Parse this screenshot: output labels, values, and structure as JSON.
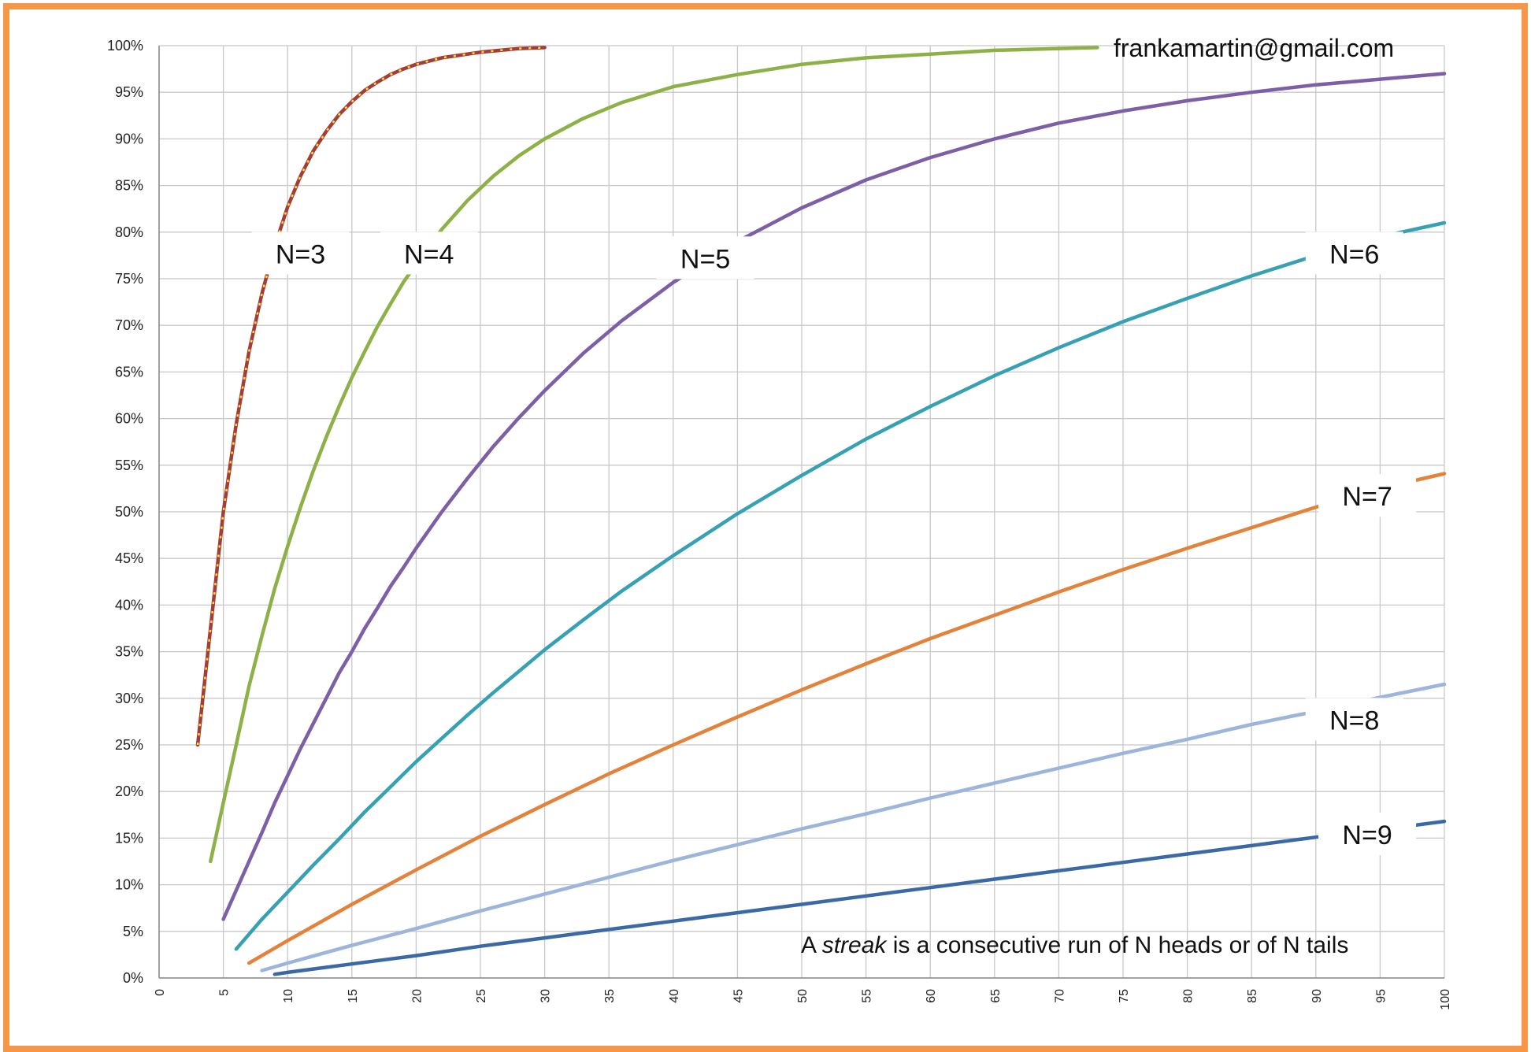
{
  "chart_data": {
    "type": "line",
    "xlim": [
      0,
      100
    ],
    "ylim": [
      0,
      100
    ],
    "x_ticks": [
      "0",
      "5",
      "10",
      "15",
      "20",
      "25",
      "30",
      "35",
      "40",
      "45",
      "50",
      "55",
      "60",
      "65",
      "70",
      "75",
      "80",
      "85",
      "90",
      "95",
      "100"
    ],
    "y_ticks": [
      "0%",
      "5%",
      "10%",
      "15%",
      "20%",
      "25%",
      "30%",
      "35%",
      "40%",
      "45%",
      "50%",
      "55%",
      "60%",
      "65%",
      "70%",
      "75%",
      "80%",
      "85%",
      "90%",
      "95%",
      "100%"
    ],
    "grid": true,
    "annotations": {
      "email": "frankamartin@gmail.com",
      "note_prefix": "A ",
      "note_italic": "streak",
      "note_suffix": " is a consecutive run of N heads or of N tails"
    },
    "series": [
      {
        "name": "N=3",
        "color": "#a53c3a",
        "dotted_overlay": "#ffe030",
        "x": [
          3,
          4,
          5,
          6,
          7,
          8,
          9,
          10,
          11,
          12,
          13,
          14,
          15,
          16,
          17,
          18,
          19,
          20,
          22,
          25,
          28,
          30
        ],
        "y": [
          25,
          37.5,
          50,
          59.4,
          67.2,
          73.4,
          78.5,
          82.7,
          86.0,
          88.7,
          90.8,
          92.6,
          94.0,
          95.2,
          96.1,
          96.9,
          97.5,
          98.0,
          98.7,
          99.3,
          99.7,
          99.8
        ]
      },
      {
        "name": "N=4",
        "color": "#8db147",
        "x": [
          4,
          5,
          6,
          7,
          8,
          9,
          10,
          11,
          12,
          13,
          14,
          15,
          16,
          17,
          18,
          19,
          20,
          22,
          24,
          26,
          28,
          30,
          33,
          36,
          40,
          45,
          50,
          55,
          60,
          65,
          70,
          73
        ],
        "y": [
          12.5,
          18.8,
          25,
          31.3,
          36.7,
          41.8,
          46.3,
          50.5,
          54.4,
          58.0,
          61.3,
          64.4,
          67.2,
          69.9,
          72.3,
          74.6,
          76.6,
          80.3,
          83.4,
          86.0,
          88.2,
          90.0,
          92.2,
          93.9,
          95.6,
          96.9,
          98.0,
          98.7,
          99.1,
          99.5,
          99.7,
          99.8
        ]
      },
      {
        "name": "N=5",
        "color": "#7c5fa6",
        "x": [
          5,
          6,
          7,
          8,
          9,
          10,
          11,
          12,
          13,
          14,
          15,
          16,
          17,
          18,
          19,
          20,
          22,
          24,
          26,
          28,
          30,
          33,
          36,
          40,
          45,
          50,
          55,
          60,
          65,
          70,
          75,
          80,
          85,
          90,
          95,
          100
        ],
        "y": [
          6.3,
          9.4,
          12.5,
          15.6,
          18.8,
          21.7,
          24.6,
          27.3,
          30.0,
          32.7,
          35.0,
          37.5,
          39.7,
          42.0,
          44.0,
          46.1,
          50.0,
          53.6,
          57.0,
          60.1,
          63.0,
          67.0,
          70.5,
          74.6,
          79.0,
          82.6,
          85.6,
          88.0,
          90.0,
          91.7,
          93.0,
          94.1,
          95.0,
          95.8,
          96.4,
          97.0
        ]
      },
      {
        "name": "N=6",
        "color": "#36a0b4",
        "x": [
          6,
          8,
          10,
          12,
          14,
          16,
          18,
          20,
          22,
          24,
          26,
          28,
          30,
          33,
          36,
          40,
          45,
          50,
          55,
          60,
          65,
          70,
          75,
          80,
          85,
          90,
          95,
          100
        ],
        "y": [
          3.1,
          6.3,
          9.2,
          12.1,
          14.9,
          17.8,
          20.5,
          23.2,
          25.7,
          28.2,
          30.6,
          32.9,
          35.2,
          38.4,
          41.5,
          45.3,
          49.8,
          53.9,
          57.8,
          61.3,
          64.6,
          67.6,
          70.4,
          72.9,
          75.3,
          77.5,
          79.5,
          81.0
        ]
      },
      {
        "name": "N=7",
        "color": "#e3823b",
        "x": [
          7,
          10,
          15,
          20,
          25,
          30,
          35,
          40,
          45,
          50,
          55,
          60,
          65,
          70,
          75,
          80,
          85,
          90,
          95,
          100
        ],
        "y": [
          1.6,
          4.0,
          7.9,
          11.6,
          15.2,
          18.6,
          21.9,
          25.0,
          28.0,
          30.9,
          33.7,
          36.4,
          38.9,
          41.4,
          43.8,
          46.1,
          48.3,
          50.5,
          52.5,
          54.1
        ]
      },
      {
        "name": "N=8",
        "color": "#9db5da",
        "x": [
          8,
          10,
          15,
          20,
          25,
          30,
          35,
          40,
          45,
          50,
          55,
          60,
          65,
          70,
          75,
          80,
          85,
          90,
          95,
          100
        ],
        "y": [
          0.8,
          1.6,
          3.5,
          5.3,
          7.2,
          9.0,
          10.8,
          12.6,
          14.3,
          16.0,
          17.6,
          19.3,
          20.9,
          22.5,
          24.1,
          25.6,
          27.2,
          28.6,
          30.1,
          31.5
        ]
      },
      {
        "name": "N=9",
        "color": "#3a69a6",
        "x": [
          9,
          10,
          15,
          20,
          25,
          30,
          35,
          40,
          45,
          50,
          55,
          60,
          65,
          70,
          75,
          80,
          85,
          90,
          95,
          100
        ],
        "y": [
          0.4,
          0.6,
          1.5,
          2.4,
          3.4,
          4.3,
          5.2,
          6.1,
          7.0,
          7.9,
          8.8,
          9.7,
          10.6,
          11.5,
          12.4,
          13.3,
          14.2,
          15.1,
          15.9,
          16.8
        ]
      }
    ]
  }
}
